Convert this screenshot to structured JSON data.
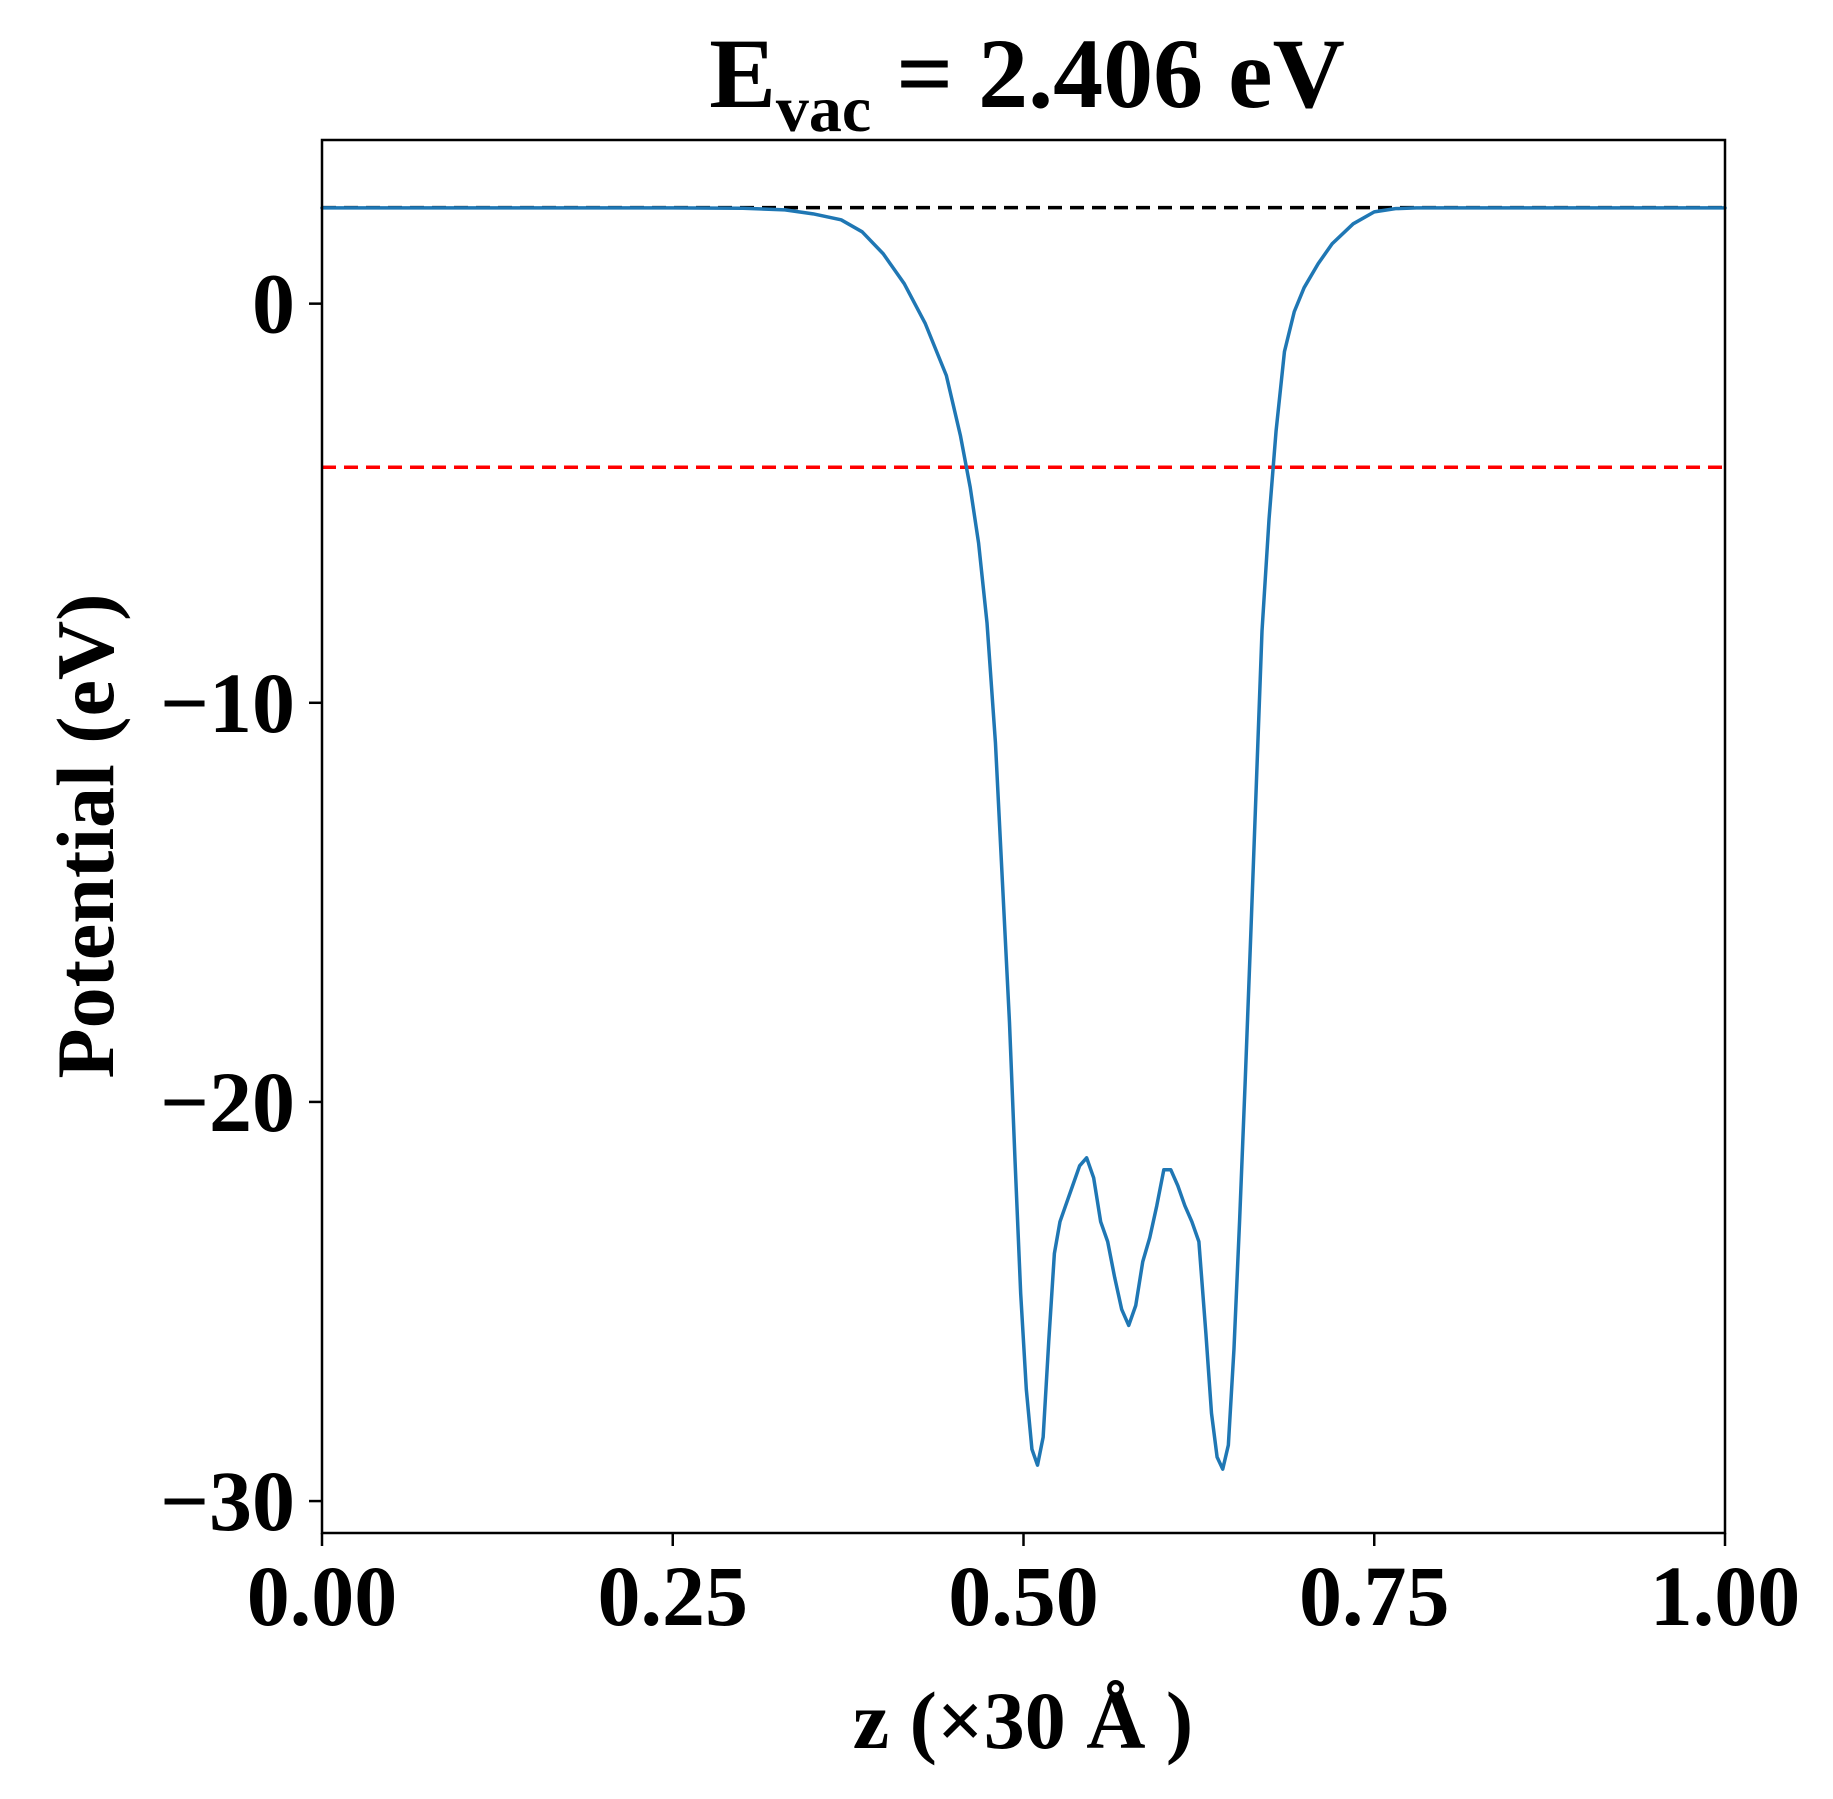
{
  "chart_data": {
    "type": "line",
    "title_main": "E",
    "title_sub": "vac",
    "title_rest": " = 2.406 eV",
    "xlabel": "z (×30 Å )",
    "ylabel": "Potential (eV)",
    "xlim": [
      0,
      1
    ],
    "ylim": [
      -30.8,
      4.1
    ],
    "xticks": [
      0.0,
      0.25,
      0.5,
      0.75,
      1.0
    ],
    "xtick_labels": [
      "0.00",
      "0.25",
      "0.50",
      "0.75",
      "1.00"
    ],
    "yticks": [
      0,
      -10,
      -20,
      -30
    ],
    "ytick_labels": [
      "0",
      "−10",
      "−20",
      "−30"
    ],
    "grid": false,
    "series": [
      {
        "color": "#1f77b4",
        "x": [
          0.0,
          0.05,
          0.1,
          0.15,
          0.2,
          0.25,
          0.3,
          0.33,
          0.35,
          0.37,
          0.385,
          0.4,
          0.415,
          0.43,
          0.445,
          0.455,
          0.462,
          0.468,
          0.474,
          0.48,
          0.485,
          0.49,
          0.494,
          0.498,
          0.502,
          0.506,
          0.51,
          0.514,
          0.518,
          0.522,
          0.526,
          0.53,
          0.535,
          0.54,
          0.545,
          0.55,
          0.555,
          0.56,
          0.565,
          0.57,
          0.575,
          0.58,
          0.585,
          0.59,
          0.595,
          0.6,
          0.605,
          0.61,
          0.615,
          0.62,
          0.625,
          0.63,
          0.634,
          0.638,
          0.642,
          0.646,
          0.65,
          0.654,
          0.658,
          0.662,
          0.666,
          0.67,
          0.675,
          0.68,
          0.686,
          0.693,
          0.7,
          0.71,
          0.72,
          0.735,
          0.75,
          0.765,
          0.78,
          0.8,
          0.85,
          0.9,
          0.95,
          1.0
        ],
        "y": [
          2.4,
          2.4,
          2.4,
          2.4,
          2.4,
          2.4,
          2.39,
          2.35,
          2.25,
          2.1,
          1.8,
          1.25,
          0.5,
          -0.5,
          -1.8,
          -3.3,
          -4.6,
          -6.0,
          -8.0,
          -11.0,
          -14.5,
          -18.0,
          -21.5,
          -24.8,
          -27.2,
          -28.7,
          -29.1,
          -28.4,
          -26.0,
          -23.8,
          -23.0,
          -22.6,
          -22.1,
          -21.6,
          -21.4,
          -21.9,
          -23.0,
          -23.5,
          -24.4,
          -25.2,
          -25.6,
          -25.1,
          -24.0,
          -23.4,
          -22.6,
          -21.7,
          -21.7,
          -22.1,
          -22.6,
          -23.0,
          -23.5,
          -25.8,
          -27.8,
          -28.9,
          -29.2,
          -28.6,
          -26.2,
          -23.0,
          -19.5,
          -15.8,
          -12.0,
          -8.2,
          -5.4,
          -3.2,
          -1.2,
          -0.2,
          0.4,
          1.0,
          1.5,
          2.0,
          2.3,
          2.38,
          2.4,
          2.4,
          2.4,
          2.4,
          2.4,
          2.4
        ]
      }
    ],
    "reference_lines": [
      {
        "y": 2.406,
        "color": "#000000",
        "style": "dashed"
      },
      {
        "y": -4.1,
        "color": "#ff0000",
        "style": "dashed"
      }
    ]
  }
}
